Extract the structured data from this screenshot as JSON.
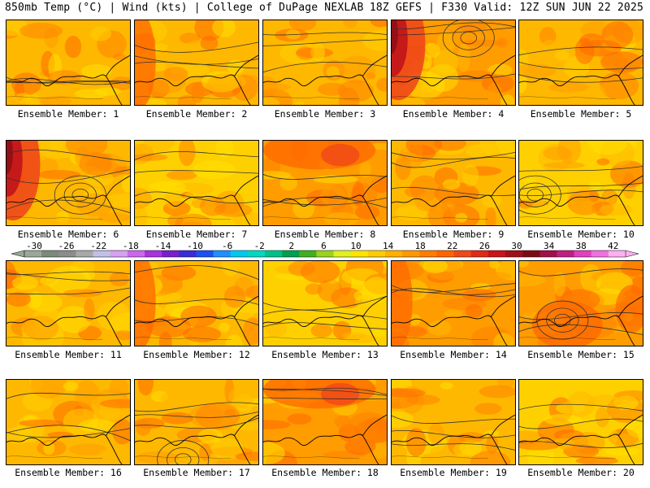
{
  "header": {
    "left": "850mb Temp (°C) | Wind (kts) | College of DuPage NEXLAB",
    "right": "18Z GEFS | F330 Valid: 12Z SUN JUN 22 2025"
  },
  "panel_caption_prefix": "Ensemble Member:",
  "members": [
    {
      "number": 1,
      "label": "Ensemble Member: 1",
      "base_temp": 18,
      "hot": "none"
    },
    {
      "number": 2,
      "label": "Ensemble Member: 2",
      "base_temp": 18,
      "hot": "west"
    },
    {
      "number": 3,
      "label": "Ensemble Member: 3",
      "base_temp": 18,
      "hot": "none"
    },
    {
      "number": 4,
      "label": "Ensemble Member: 4",
      "base_temp": 20,
      "hot": "northwest"
    },
    {
      "number": 5,
      "label": "Ensemble Member: 5",
      "base_temp": 18,
      "hot": "none"
    },
    {
      "number": 6,
      "label": "Ensemble Member: 6",
      "base_temp": 18,
      "hot": "northwest"
    },
    {
      "number": 7,
      "label": "Ensemble Member: 7",
      "base_temp": 16,
      "hot": "none"
    },
    {
      "number": 8,
      "label": "Ensemble Member: 8",
      "base_temp": 20,
      "hot": "north"
    },
    {
      "number": 9,
      "label": "Ensemble Member: 9",
      "base_temp": 18,
      "hot": "none"
    },
    {
      "number": 10,
      "label": "Ensemble Member: 10",
      "base_temp": 16,
      "hot": "none"
    },
    {
      "number": 11,
      "label": "Ensemble Member: 11",
      "base_temp": 18,
      "hot": "none"
    },
    {
      "number": 12,
      "label": "Ensemble Member: 12",
      "base_temp": 18,
      "hot": "west"
    },
    {
      "number": 13,
      "label": "Ensemble Member: 13",
      "base_temp": 16,
      "hot": "none"
    },
    {
      "number": 14,
      "label": "Ensemble Member: 14",
      "base_temp": 20,
      "hot": "west"
    },
    {
      "number": 15,
      "label": "Ensemble Member: 15",
      "base_temp": 20,
      "hot": "south"
    },
    {
      "number": 16,
      "label": "Ensemble Member: 16",
      "base_temp": 18,
      "hot": "none"
    },
    {
      "number": 17,
      "label": "Ensemble Member: 17",
      "base_temp": 18,
      "hot": "none"
    },
    {
      "number": 18,
      "label": "Ensemble Member: 18",
      "base_temp": 20,
      "hot": "north"
    },
    {
      "number": 19,
      "label": "Ensemble Member: 19",
      "base_temp": 18,
      "hot": "none"
    },
    {
      "number": 20,
      "label": "Ensemble Member: 20",
      "base_temp": 16,
      "hot": "none"
    }
  ],
  "colorbar": {
    "tick_labels": [
      "-30",
      "-26",
      "-22",
      "-18",
      "-14",
      "-10",
      "-6",
      "-2",
      "2",
      "6",
      "10",
      "14",
      "18",
      "22",
      "26",
      "30",
      "34",
      "38",
      "42"
    ],
    "colors": [
      "#9aa89a",
      "#7c8a7c",
      "#8c8c8c",
      "#a8a8a8",
      "#c0c0e8",
      "#d7a0f0",
      "#cc66ee",
      "#aa33dd",
      "#7a1ecc",
      "#3a2ad8",
      "#1c50f0",
      "#1e90ff",
      "#00c8f0",
      "#00d8c0",
      "#00c08a",
      "#00a050",
      "#40b020",
      "#9ad21e",
      "#e0f020",
      "#ffe400",
      "#ffcc00",
      "#ffb000",
      "#ff9800",
      "#ff7e00",
      "#ff6400",
      "#f04818",
      "#e02a14",
      "#c8141a",
      "#a0101a",
      "#7c0a14",
      "#a0104a",
      "#c02080",
      "#e040c0",
      "#f070e0",
      "#ffb0f0"
    ]
  },
  "temperature_colors": {
    "10": "#e8f020",
    "14": "#ffe000",
    "16": "#ffd000",
    "18": "#ffb800",
    "20": "#ff9c00",
    "22": "#ff8200",
    "24": "#ff6a00",
    "26": "#f04818",
    "28": "#e02a14",
    "30": "#c0141a",
    "32": "#900e14"
  },
  "coastline_color": "#000000",
  "contour_color": "#333333"
}
